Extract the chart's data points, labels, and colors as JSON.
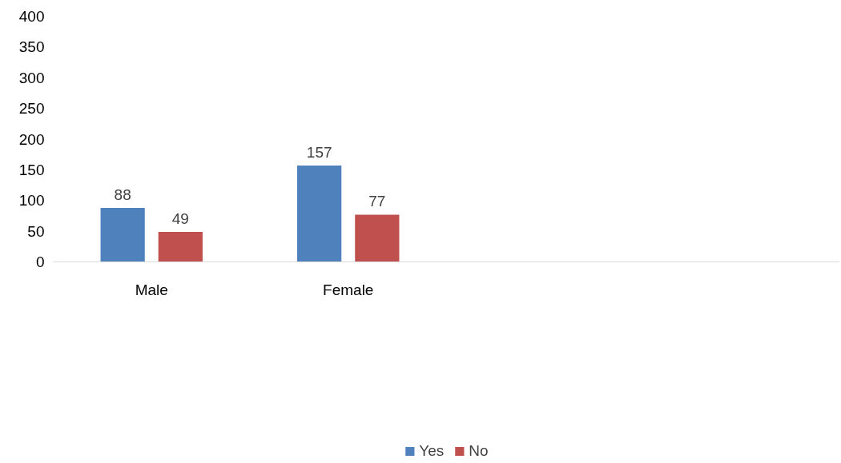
{
  "chart_data": {
    "type": "bar",
    "categories": [
      "Male",
      "Female",
      null,
      null
    ],
    "series": [
      {
        "name": "Yes",
        "color": "#4f81bd",
        "values": [
          88,
          157,
          null,
          null
        ]
      },
      {
        "name": "No",
        "color": "#c0504d",
        "values": [
          49,
          77,
          null,
          null
        ]
      }
    ],
    "ylim": [
      0,
      400
    ],
    "yticks": [
      0,
      50,
      100,
      150,
      200,
      250,
      300,
      350,
      400
    ],
    "grid": false,
    "legend": "bottom",
    "data_labels": true
  }
}
